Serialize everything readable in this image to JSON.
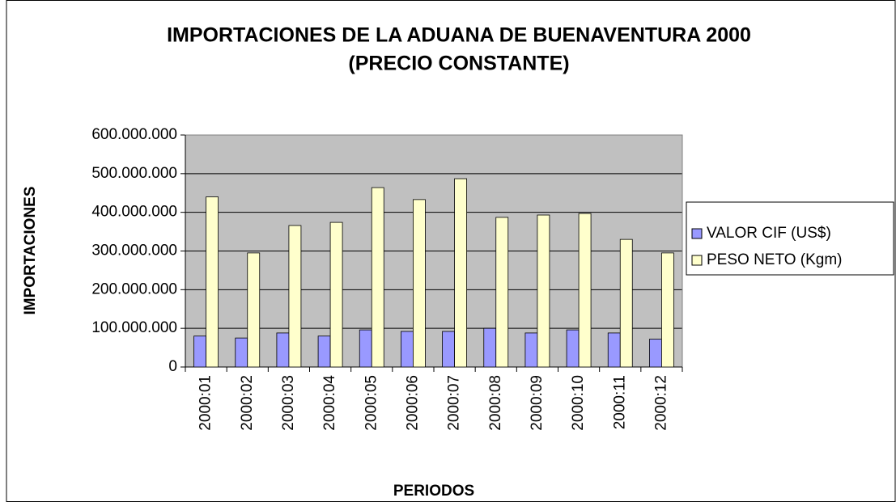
{
  "chart_data": {
    "type": "bar",
    "title": [
      "IMPORTACIONES DE LA ADUANA DE BUENAVENTURA 2000",
      "(PRECIO CONSTANTE)"
    ],
    "x_label": "PERIODOS",
    "y_label": "IMPORTACIONES",
    "categories": [
      "2000:01",
      "2000:02",
      "2000:03",
      "2000:04",
      "2000:05",
      "2000:06",
      "2000:07",
      "2000:08",
      "2000:09",
      "2000:10",
      "2000:11",
      "2000:12"
    ],
    "series": [
      {
        "name": "VALOR CIF (US$)",
        "color": "#9999ff",
        "values": [
          80000000,
          75000000,
          88000000,
          80000000,
          96000000,
          92000000,
          92000000,
          100000000,
          88000000,
          96000000,
          88000000,
          72000000
        ]
      },
      {
        "name": "PESO NETO (Kgm)",
        "color": "#ffffcc",
        "values": [
          440000000,
          295000000,
          366000000,
          374000000,
          464000000,
          433000000,
          487000000,
          387000000,
          393000000,
          397000000,
          330000000,
          295000000
        ]
      }
    ],
    "ylim": [
      0,
      600000000
    ],
    "yticks": [
      0,
      {
        "value": 100000000,
        "label": "100.000.000"
      },
      {
        "value": 200000000,
        "label": "200.000.000"
      },
      {
        "value": 300000000,
        "label": "300.000.000"
      },
      {
        "value": 400000000,
        "label": "400.000.000"
      },
      {
        "value": 500000000,
        "label": "500.000.000"
      },
      {
        "value": 600000000,
        "label": "600.000.000"
      }
    ],
    "grid": true,
    "legend": "right"
  }
}
